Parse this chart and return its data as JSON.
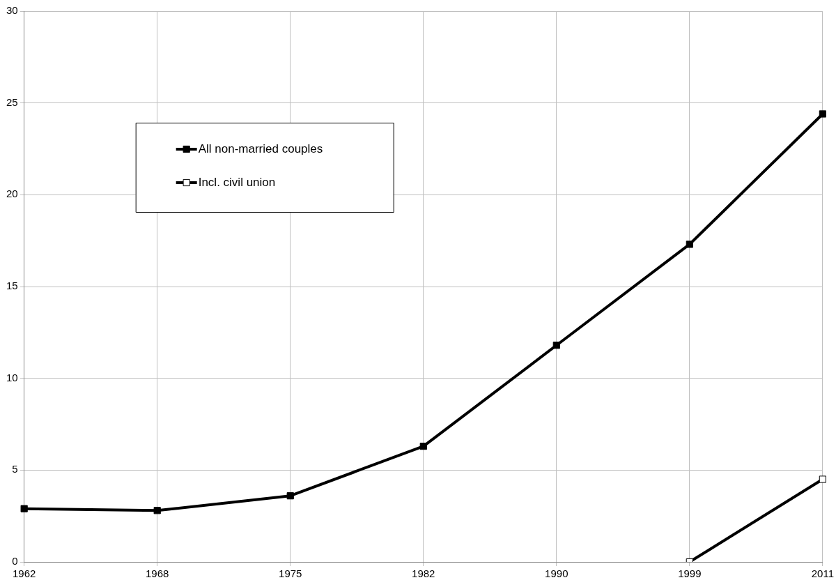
{
  "chart_data": {
    "type": "line",
    "categories": [
      "1962",
      "1968",
      "1975",
      "1982",
      "1990",
      "1999",
      "2011"
    ],
    "series": [
      {
        "name": "All non-married couples",
        "color": "#000000",
        "values": [
          2.9,
          2.8,
          3.6,
          6.3,
          11.8,
          17.3,
          24.4
        ]
      },
      {
        "name": "Incl. civil union",
        "color": "#000000",
        "values": [
          null,
          null,
          null,
          null,
          null,
          0,
          4.5
        ]
      }
    ],
    "ylim": [
      0,
      30
    ],
    "yticks": [
      0,
      5,
      10,
      15,
      20,
      25,
      30
    ],
    "grid": true,
    "legend": "top left",
    "marker": "square",
    "line_style": "solid"
  }
}
